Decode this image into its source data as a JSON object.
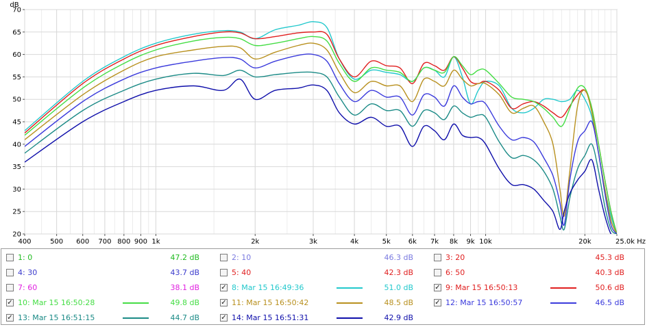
{
  "chart_data": {
    "type": "line",
    "ylabel": "dB",
    "xlabel_unit": "Hz",
    "x_scale": "log",
    "xlim": [
      400,
      25000
    ],
    "ylim": [
      20,
      70
    ],
    "y_ticks": [
      20,
      25,
      30,
      35,
      40,
      45,
      50,
      55,
      60,
      65,
      70
    ],
    "x_ticks": [
      400,
      500,
      600,
      700,
      800,
      900,
      1000,
      2000,
      3000,
      4000,
      5000,
      6000,
      7000,
      8000,
      9000,
      10000,
      20000,
      25000
    ],
    "x_tick_labels": [
      "400",
      "500",
      "600",
      "700",
      "800",
      "900",
      "1k",
      "2k",
      "3k",
      "4k",
      "5k",
      "6k",
      "7k",
      "8k",
      "9k",
      "10k",
      "20k",
      "25.0k Hz"
    ],
    "grid": true,
    "series": [
      {
        "name": "8: Mar 15 16:49:36",
        "color": "#22c8cc",
        "visible": true,
        "x": [
          400,
          600,
          800,
          1000,
          1300,
          1600,
          1800,
          2000,
          2300,
          2700,
          3000,
          3300,
          3600,
          4000,
          4500,
          5000,
          5500,
          6000,
          6500,
          7000,
          7500,
          8000,
          8500,
          9000,
          9500,
          10000,
          11000,
          12000,
          13000,
          14000,
          15000,
          16000,
          17000,
          18000,
          19000,
          20000,
          21000,
          22000,
          23000,
          24000,
          25000
        ],
        "y": [
          43,
          54,
          59.5,
          62.5,
          64.5,
          65.3,
          65,
          63.5,
          65.5,
          66.5,
          67.3,
          66,
          59,
          54.5,
          56.5,
          56,
          55.5,
          54,
          57,
          56.5,
          55,
          59.5,
          55,
          49,
          52,
          54,
          53,
          48,
          47,
          48,
          50,
          50,
          49.5,
          50,
          52,
          50,
          46,
          38,
          30,
          24,
          20
        ]
      },
      {
        "name": "9: Mar 15 16:50:13",
        "color": "#e01e1e",
        "visible": true,
        "x": [
          400,
          600,
          800,
          1000,
          1300,
          1600,
          1800,
          2000,
          2300,
          2700,
          3000,
          3300,
          3600,
          4000,
          4500,
          5000,
          5500,
          6000,
          6500,
          7000,
          7500,
          8000,
          8500,
          9000,
          9500,
          10000,
          11000,
          12000,
          13000,
          14000,
          15000,
          16000,
          17000,
          18000,
          19000,
          20000,
          21000,
          22000,
          23000,
          24000,
          25000
        ],
        "y": [
          42.5,
          53.5,
          59,
          62,
          64,
          65,
          64.8,
          63.5,
          64,
          64.8,
          65,
          64.5,
          59,
          55,
          58.5,
          57.5,
          57,
          53.5,
          58,
          57.5,
          56.5,
          59.5,
          57,
          54,
          53.5,
          54,
          52,
          48,
          49,
          49.5,
          48.5,
          47,
          46,
          48.5,
          51,
          52,
          48,
          40,
          32,
          25,
          20
        ]
      },
      {
        "name": "10: Mar 15 16:50:28",
        "color": "#44dd44",
        "visible": true,
        "x": [
          400,
          600,
          800,
          1000,
          1300,
          1600,
          1800,
          2000,
          2300,
          2700,
          3000,
          3300,
          3600,
          4000,
          4500,
          5000,
          5500,
          6000,
          6500,
          7000,
          7500,
          8000,
          8500,
          9000,
          9500,
          10000,
          11000,
          12000,
          13000,
          14000,
          15000,
          16000,
          17000,
          18000,
          19000,
          20000,
          21000,
          22000,
          23000,
          24000,
          25000
        ],
        "y": [
          42,
          52.5,
          58,
          61,
          63,
          63.8,
          63.5,
          62,
          62.5,
          63.5,
          64,
          63,
          58,
          54,
          57,
          56.5,
          56,
          54,
          57,
          56.5,
          56,
          59.5,
          57.5,
          55.5,
          56.5,
          56.5,
          53.5,
          50.5,
          50,
          49.5,
          48,
          46,
          44,
          48,
          52.5,
          52.5,
          48,
          40,
          32,
          25,
          20
        ]
      },
      {
        "name": "11: Mar 15 16:50:42",
        "color": "#b8901e",
        "visible": true,
        "x": [
          400,
          600,
          800,
          1000,
          1300,
          1600,
          1800,
          2000,
          2300,
          2700,
          3000,
          3300,
          3600,
          4000,
          4500,
          5000,
          5500,
          6000,
          6500,
          7000,
          7500,
          8000,
          8500,
          9000,
          9500,
          10000,
          11000,
          12000,
          13000,
          14000,
          15000,
          16000,
          16800,
          17300,
          18000,
          19000,
          20000,
          21000,
          22000,
          23000,
          24000,
          25000
        ],
        "y": [
          41,
          51,
          56.5,
          59.5,
          61,
          61.8,
          61.5,
          59,
          60.5,
          62,
          62.5,
          61,
          56,
          51.5,
          54,
          53,
          53,
          49.5,
          54.5,
          54,
          53,
          56.5,
          54.5,
          53,
          53.5,
          53.5,
          51,
          47,
          48,
          48.5,
          45,
          40,
          30,
          24,
          34,
          48.5,
          52,
          47,
          38,
          30,
          23,
          20
        ]
      },
      {
        "name": "12: Mar 15 16:50:57",
        "color": "#3a3adc",
        "visible": true,
        "x": [
          400,
          600,
          800,
          1000,
          1300,
          1600,
          1800,
          2000,
          2300,
          2700,
          3000,
          3300,
          3600,
          4000,
          4500,
          5000,
          5500,
          6000,
          6500,
          7000,
          7500,
          8000,
          8500,
          9000,
          9500,
          10000,
          11000,
          12000,
          13000,
          14000,
          15000,
          16000,
          16800,
          17300,
          18000,
          19000,
          20000,
          21000,
          22000,
          23000,
          24000,
          25000
        ],
        "y": [
          39.5,
          49.5,
          54.5,
          57,
          58.5,
          59.3,
          59,
          57,
          58.5,
          59.8,
          60,
          58.5,
          53.5,
          49.5,
          52,
          50.5,
          50.5,
          46.5,
          51,
          50.5,
          48.5,
          53,
          50.5,
          49,
          49.5,
          49,
          44,
          41,
          41.5,
          40.5,
          37,
          33,
          27,
          22,
          32,
          40.5,
          43,
          45,
          38,
          29,
          22,
          20
        ]
      },
      {
        "name": "13: Mar 15 16:51:15",
        "color": "#1a8a86",
        "visible": true,
        "x": [
          400,
          600,
          800,
          1000,
          1300,
          1600,
          1800,
          2000,
          2300,
          2700,
          3000,
          3300,
          3600,
          4000,
          4500,
          5000,
          5500,
          6000,
          6500,
          7000,
          7500,
          8000,
          8500,
          9000,
          9500,
          10000,
          11000,
          12000,
          13000,
          14000,
          15000,
          16000,
          16800,
          17300,
          18000,
          19000,
          20000,
          21000,
          22000,
          23000,
          24000,
          25000
        ],
        "y": [
          38,
          47.5,
          52,
          54.5,
          55.8,
          55.3,
          56.5,
          55,
          55.5,
          56,
          56,
          55,
          50.5,
          46.5,
          49,
          47.5,
          47.5,
          44,
          47.5,
          47,
          45.5,
          48.5,
          47,
          46,
          46.5,
          46,
          40.5,
          37,
          37.5,
          36.5,
          34,
          30,
          24,
          21,
          28,
          34.5,
          37.5,
          40,
          34,
          26,
          21,
          20
        ]
      },
      {
        "name": "14: Mar 15 16:51:31",
        "color": "#0e0eaa",
        "visible": true,
        "x": [
          400,
          600,
          800,
          1000,
          1300,
          1600,
          1800,
          2000,
          2300,
          2700,
          3000,
          3300,
          3600,
          4000,
          4500,
          5000,
          5500,
          6000,
          6500,
          7000,
          7500,
          8000,
          8500,
          9000,
          9500,
          10000,
          11000,
          12000,
          13000,
          14000,
          15000,
          16000,
          16800,
          17300,
          18000,
          19000,
          20000,
          21000,
          22000,
          23000,
          24000,
          25000
        ],
        "y": [
          36,
          45,
          49.5,
          52,
          53,
          52,
          54.5,
          50,
          52,
          52.5,
          53.2,
          52,
          47,
          44.5,
          46,
          44,
          44,
          39.5,
          44,
          43,
          41,
          44.5,
          42,
          41.5,
          41.5,
          40,
          34.5,
          31,
          31,
          30,
          27.5,
          25,
          21,
          25,
          29,
          32,
          34,
          36.5,
          30,
          24,
          20,
          20
        ]
      }
    ]
  },
  "legend": {
    "items": [
      {
        "label": "1: 0",
        "value": "47.2 dB",
        "checked": false,
        "color": "#22bb22",
        "swatch": false
      },
      {
        "label": "2: 10",
        "value": "46.3 dB",
        "checked": false,
        "color": "#7a7ae0",
        "swatch": false
      },
      {
        "label": "3: 20",
        "value": "45.3 dB",
        "checked": false,
        "color": "#e02020",
        "swatch": false
      },
      {
        "label": "4: 30",
        "value": "43.7 dB",
        "checked": false,
        "color": "#3a3acc",
        "swatch": false
      },
      {
        "label": "5: 40",
        "value": "42.3 dB",
        "checked": false,
        "color": "#e02020",
        "swatch": false
      },
      {
        "label": "6: 50",
        "value": "40.3 dB",
        "checked": false,
        "color": "#e02020",
        "swatch": false
      },
      {
        "label": "7: 60",
        "value": "38.1 dB",
        "checked": false,
        "color": "#e020e0",
        "swatch": false
      },
      {
        "label": "8: Mar 15 16:49:36",
        "value": "51.0 dB",
        "checked": true,
        "color": "#22c8cc",
        "swatch": true
      },
      {
        "label": "9: Mar 15 16:50:13",
        "value": "50.6 dB",
        "checked": true,
        "color": "#e01e1e",
        "swatch": true
      },
      {
        "label": "10: Mar 15 16:50:28",
        "value": "49.8 dB",
        "checked": true,
        "color": "#44dd44",
        "swatch": true
      },
      {
        "label": "11: Mar 15 16:50:42",
        "value": "48.5 dB",
        "checked": true,
        "color": "#b8901e",
        "swatch": true
      },
      {
        "label": "12: Mar 15 16:50:57",
        "value": "46.5 dB",
        "checked": true,
        "color": "#3a3adc",
        "swatch": true
      },
      {
        "label": "13: Mar 15 16:51:15",
        "value": "44.7 dB",
        "checked": true,
        "color": "#1a8a86",
        "swatch": true
      },
      {
        "label": "14: Mar 15 16:51:31",
        "value": "42.9 dB",
        "checked": true,
        "color": "#0e0eaa",
        "swatch": true
      }
    ]
  },
  "colors": {
    "grid": "#d8d8d8",
    "frame": "#9c9c9c",
    "checkmark": "#1a1a1a"
  },
  "icons": {
    "checked": "check-icon"
  }
}
